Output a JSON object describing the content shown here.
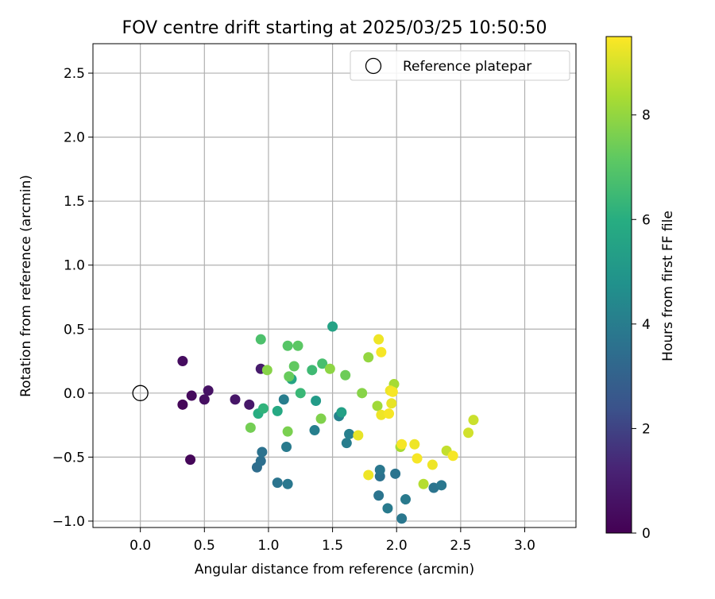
{
  "chart_data": {
    "type": "scatter",
    "title": "FOV centre drift starting at 2025/03/25 10:50:50",
    "xlabel": "Angular distance from reference (arcmin)",
    "ylabel": "Rotation from reference (arcmin)",
    "xlim": [
      -0.37,
      3.4
    ],
    "ylim": [
      -1.05,
      2.73
    ],
    "xticks": [
      "0.0",
      "0.5",
      "1.0",
      "1.5",
      "2.0",
      "2.5",
      "3.0"
    ],
    "xtick_values": [
      0,
      0.5,
      1.0,
      1.5,
      2.0,
      2.5,
      3.0
    ],
    "yticks": [
      "−1.0",
      "−0.5",
      "0.0",
      "0.5",
      "1.0",
      "1.5",
      "2.0",
      "2.5"
    ],
    "ytick_values": [
      -1.0,
      -0.5,
      0,
      0.5,
      1.0,
      1.5,
      2.0,
      2.5
    ],
    "grid": true,
    "legend": {
      "position": "top-right",
      "label": "Reference platepar"
    },
    "reference_point": {
      "x": 0,
      "y": 0
    },
    "colorbar": {
      "label": "Hours from first FF file",
      "colormap": "viridis",
      "range": [
        0,
        9.5
      ],
      "ticks": [
        "0",
        "2",
        "4",
        "6",
        "8"
      ],
      "tick_values": [
        0,
        2,
        4,
        6,
        8
      ]
    },
    "points": [
      {
        "x": 0.33,
        "y": 0.25,
        "hours": 0.4
      },
      {
        "x": 0.33,
        "y": -0.09,
        "hours": 0.2
      },
      {
        "x": 0.4,
        "y": -0.02,
        "hours": 0.3
      },
      {
        "x": 0.39,
        "y": -0.52,
        "hours": 0.2
      },
      {
        "x": 0.5,
        "y": -0.05,
        "hours": 0.5
      },
      {
        "x": 0.53,
        "y": 0.02,
        "hours": 0.6
      },
      {
        "x": 0.74,
        "y": -0.05,
        "hours": 0.7
      },
      {
        "x": 0.85,
        "y": -0.09,
        "hours": 0.8
      },
      {
        "x": 0.94,
        "y": 0.19,
        "hours": 0.9
      },
      {
        "x": 0.91,
        "y": -0.58,
        "hours": 3.4
      },
      {
        "x": 0.94,
        "y": -0.53,
        "hours": 3.5
      },
      {
        "x": 0.95,
        "y": -0.46,
        "hours": 3.6
      },
      {
        "x": 1.07,
        "y": -0.7,
        "hours": 3.7
      },
      {
        "x": 1.15,
        "y": -0.71,
        "hours": 3.8
      },
      {
        "x": 1.14,
        "y": -0.42,
        "hours": 3.9
      },
      {
        "x": 1.12,
        "y": -0.05,
        "hours": 4.0
      },
      {
        "x": 1.36,
        "y": -0.29,
        "hours": 4.1
      },
      {
        "x": 1.55,
        "y": -0.18,
        "hours": 4.2
      },
      {
        "x": 1.61,
        "y": -0.39,
        "hours": 4.0
      },
      {
        "x": 1.63,
        "y": -0.32,
        "hours": 4.1
      },
      {
        "x": 1.86,
        "y": -0.8,
        "hours": 3.7
      },
      {
        "x": 1.87,
        "y": -0.65,
        "hours": 3.6
      },
      {
        "x": 1.87,
        "y": -0.6,
        "hours": 3.8
      },
      {
        "x": 1.93,
        "y": -0.9,
        "hours": 3.9
      },
      {
        "x": 1.99,
        "y": -0.63,
        "hours": 3.7
      },
      {
        "x": 2.04,
        "y": -0.98,
        "hours": 3.8
      },
      {
        "x": 2.07,
        "y": -0.83,
        "hours": 3.9
      },
      {
        "x": 2.29,
        "y": -0.74,
        "hours": 3.7
      },
      {
        "x": 2.35,
        "y": -0.72,
        "hours": 3.8
      },
      {
        "x": 1.37,
        "y": -0.06,
        "hours": 5.2
      },
      {
        "x": 1.57,
        "y": -0.15,
        "hours": 5.4
      },
      {
        "x": 1.5,
        "y": 0.52,
        "hours": 5.5
      },
      {
        "x": 1.18,
        "y": 0.11,
        "hours": 5.6
      },
      {
        "x": 1.07,
        "y": -0.14,
        "hours": 5.8
      },
      {
        "x": 0.92,
        "y": -0.16,
        "hours": 6.0
      },
      {
        "x": 0.96,
        "y": -0.12,
        "hours": 6.2
      },
      {
        "x": 1.25,
        "y": 0.0,
        "hours": 6.4
      },
      {
        "x": 1.34,
        "y": 0.18,
        "hours": 6.5
      },
      {
        "x": 1.42,
        "y": 0.23,
        "hours": 6.7
      },
      {
        "x": 0.94,
        "y": 0.42,
        "hours": 6.8
      },
      {
        "x": 1.15,
        "y": 0.37,
        "hours": 7.0
      },
      {
        "x": 1.23,
        "y": 0.37,
        "hours": 7.1
      },
      {
        "x": 1.2,
        "y": 0.21,
        "hours": 7.2
      },
      {
        "x": 1.16,
        "y": 0.13,
        "hours": 7.3
      },
      {
        "x": 1.6,
        "y": 0.14,
        "hours": 7.4
      },
      {
        "x": 0.86,
        "y": -0.27,
        "hours": 7.5
      },
      {
        "x": 1.15,
        "y": -0.3,
        "hours": 7.6
      },
      {
        "x": 1.41,
        "y": -0.2,
        "hours": 7.7
      },
      {
        "x": 0.99,
        "y": 0.18,
        "hours": 7.8
      },
      {
        "x": 1.48,
        "y": 0.19,
        "hours": 7.9
      },
      {
        "x": 1.73,
        "y": 0.0,
        "hours": 7.8
      },
      {
        "x": 1.78,
        "y": 0.28,
        "hours": 8.0
      },
      {
        "x": 1.85,
        "y": -0.1,
        "hours": 8.2
      },
      {
        "x": 1.98,
        "y": 0.07,
        "hours": 8.3
      },
      {
        "x": 2.03,
        "y": -0.42,
        "hours": 8.3
      },
      {
        "x": 2.21,
        "y": -0.71,
        "hours": 8.5
      },
      {
        "x": 2.39,
        "y": -0.45,
        "hours": 8.7
      },
      {
        "x": 2.56,
        "y": -0.31,
        "hours": 8.9
      },
      {
        "x": 2.6,
        "y": -0.21,
        "hours": 8.8
      },
      {
        "x": 1.86,
        "y": 0.42,
        "hours": 9.3
      },
      {
        "x": 1.88,
        "y": 0.32,
        "hours": 9.4
      },
      {
        "x": 1.95,
        "y": 0.02,
        "hours": 9.3
      },
      {
        "x": 1.97,
        "y": 0.01,
        "hours": 9.4
      },
      {
        "x": 1.96,
        "y": -0.08,
        "hours": 9.2
      },
      {
        "x": 1.88,
        "y": -0.17,
        "hours": 9.3
      },
      {
        "x": 1.94,
        "y": -0.16,
        "hours": 9.4
      },
      {
        "x": 1.7,
        "y": -0.33,
        "hours": 9.2
      },
      {
        "x": 1.78,
        "y": -0.64,
        "hours": 9.3
      },
      {
        "x": 2.04,
        "y": -0.4,
        "hours": 9.4
      },
      {
        "x": 2.14,
        "y": -0.4,
        "hours": 9.3
      },
      {
        "x": 2.16,
        "y": -0.51,
        "hours": 9.4
      },
      {
        "x": 2.28,
        "y": -0.56,
        "hours": 9.3
      },
      {
        "x": 2.44,
        "y": -0.49,
        "hours": 9.4
      }
    ]
  }
}
